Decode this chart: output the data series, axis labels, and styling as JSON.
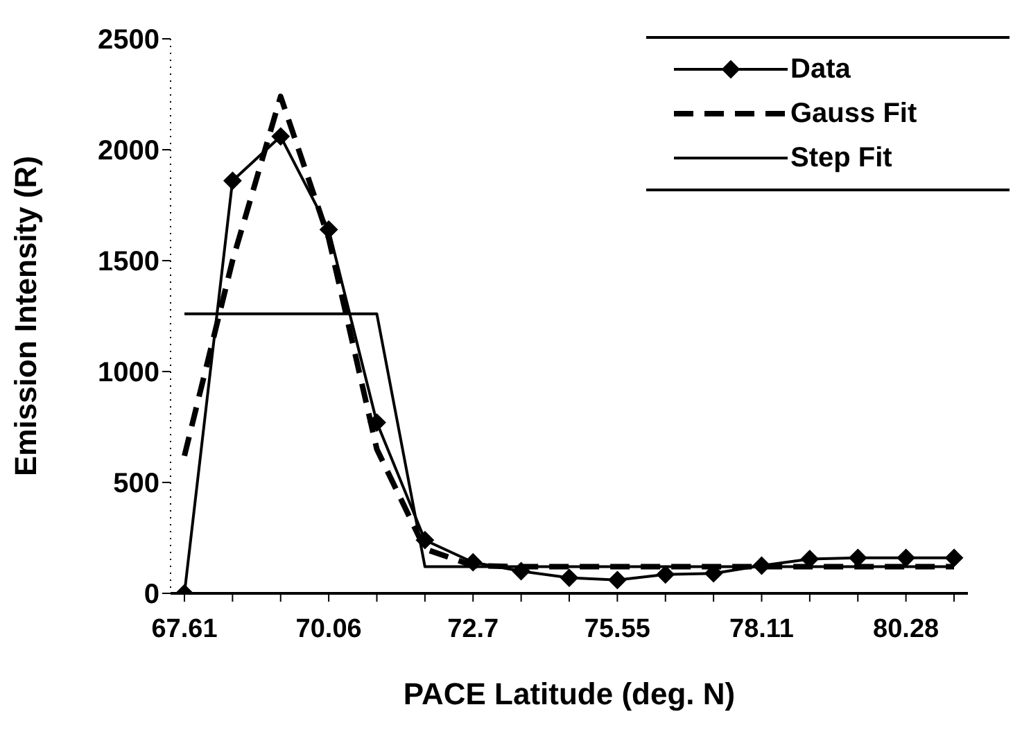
{
  "chart_data": {
    "type": "line",
    "xlabel": "PACE Latitude (deg. N)",
    "ylabel": "Emission Intensity (R)",
    "categories": [
      "67.61",
      null,
      null,
      "70.06",
      null,
      null,
      "72.7",
      null,
      null,
      "75.55",
      null,
      null,
      "78.11",
      null,
      null,
      "80.28",
      null
    ],
    "series": [
      {
        "name": "Data",
        "color": "#000000",
        "marker": "diamond",
        "line_style": "solid",
        "values": [
          0,
          1860,
          2060,
          1640,
          770,
          240,
          140,
          100,
          70,
          60,
          85,
          90,
          125,
          155,
          160,
          160,
          160
        ]
      },
      {
        "name": "Gauss Fit",
        "color": "#000000",
        "marker": "none",
        "line_style": "dashed",
        "values": [
          620,
          1500,
          2240,
          1600,
          650,
          200,
          125,
          120,
          120,
          120,
          120,
          120,
          120,
          120,
          120,
          120,
          120
        ]
      },
      {
        "name": "Step Fit",
        "color": "#000000",
        "marker": "none",
        "line_style": "solid",
        "values": [
          1260,
          1260,
          1260,
          1260,
          1260,
          120,
          120,
          120,
          120,
          120,
          120,
          120,
          120,
          120,
          120,
          120,
          120
        ]
      }
    ],
    "ylim": [
      0,
      2500
    ],
    "yticks": [
      0,
      500,
      1000,
      1500,
      2000,
      2500
    ],
    "grid": false,
    "legend": "top right"
  }
}
